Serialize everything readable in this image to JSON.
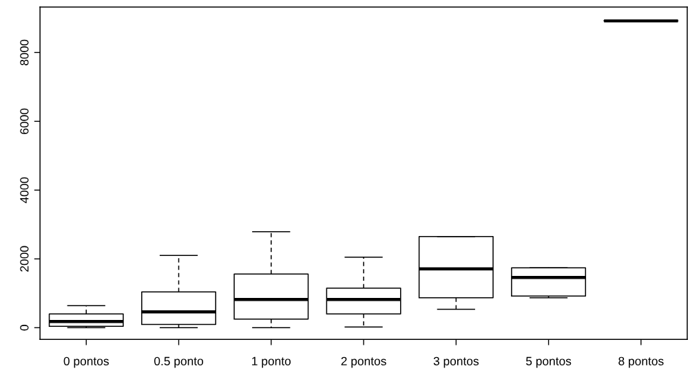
{
  "chart_data": {
    "type": "box",
    "categories": [
      "0 pontos",
      "0.5 ponto",
      "1 ponto",
      "2 pontos",
      "3 pontos",
      "5 pontos",
      "8 pontos"
    ],
    "boxes": [
      {
        "low": 0,
        "q1": 40,
        "median": 180,
        "q3": 400,
        "high": 640
      },
      {
        "low": 0,
        "q1": 95,
        "median": 460,
        "q3": 1040,
        "high": 2100
      },
      {
        "low": 0,
        "q1": 250,
        "median": 820,
        "q3": 1560,
        "high": 2790
      },
      {
        "low": 20,
        "q1": 400,
        "median": 820,
        "q3": 1150,
        "high": 2050
      },
      {
        "low": 535,
        "q1": 870,
        "median": 1710,
        "q3": 2650,
        "high": 2650
      },
      {
        "low": 870,
        "q1": 920,
        "median": 1460,
        "q3": 1740,
        "high": 1740
      },
      {
        "low": 8920,
        "q1": 8920,
        "median": 8920,
        "q3": 8920,
        "high": 8920
      }
    ],
    "color": "#000000",
    "ylim": [
      -340,
      9320
    ],
    "yticks": [
      0,
      2000,
      4000,
      6000,
      8000
    ],
    "grid": false,
    "legend": false,
    "line_style": "dashed"
  }
}
